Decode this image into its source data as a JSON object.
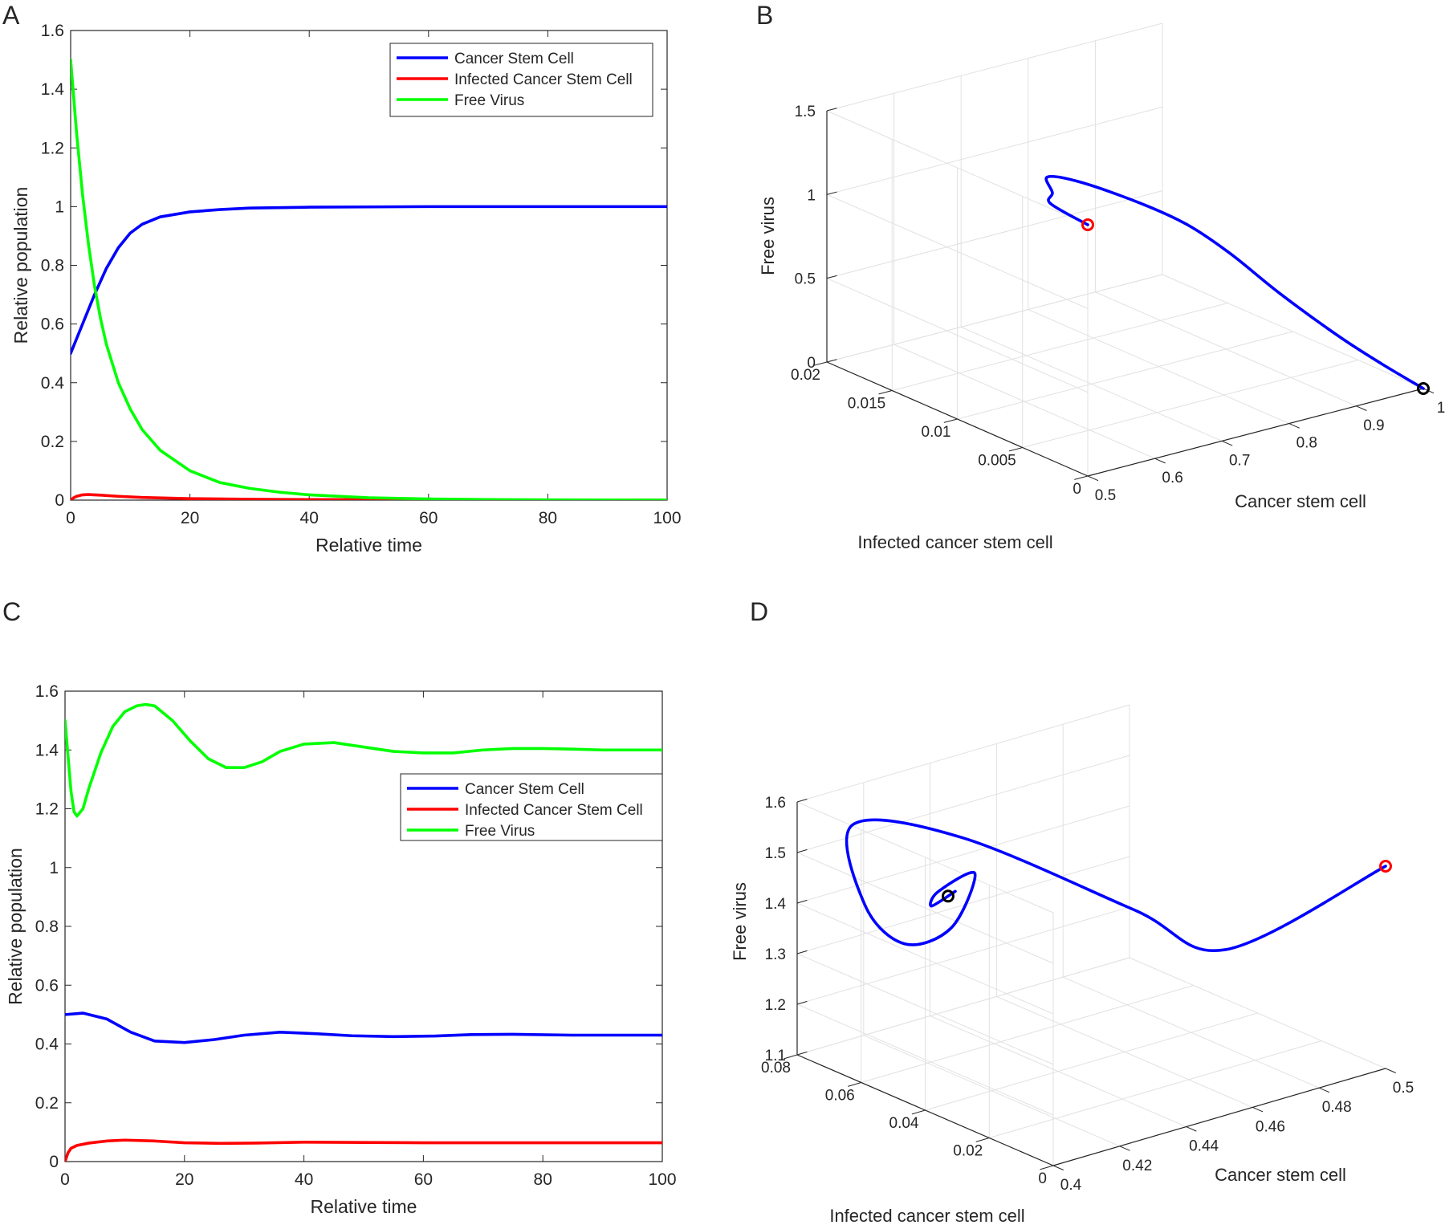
{
  "figure": {
    "panel_letters": [
      "A",
      "B",
      "C",
      "D"
    ]
  },
  "chart_data": [
    {
      "panel": "A",
      "type": "line",
      "xlabel": "Relative time",
      "ylabel": "Relative population",
      "xlim": [
        0,
        100
      ],
      "ylim": [
        0,
        1.6
      ],
      "xticks": [
        "0",
        "20",
        "40",
        "60",
        "80",
        "100"
      ],
      "yticks": [
        "0",
        "0.2",
        "0.4",
        "0.6",
        "0.8",
        "1",
        "1.2",
        "1.4",
        "1.6"
      ],
      "legend_position": "top-right",
      "series": [
        {
          "name": "Cancer Stem Cell",
          "color": "#0000ff",
          "x": [
            0,
            2,
            4,
            6,
            8,
            10,
            12,
            15,
            20,
            25,
            30,
            40,
            50,
            60,
            70,
            80,
            90,
            100
          ],
          "y": [
            0.5,
            0.6,
            0.7,
            0.79,
            0.86,
            0.91,
            0.94,
            0.965,
            0.982,
            0.99,
            0.995,
            0.998,
            0.999,
            1.0,
            1.0,
            1.0,
            1.0,
            1.0
          ]
        },
        {
          "name": "Infected Cancer Stem Cell",
          "color": "#ff0000",
          "x": [
            0,
            0.5,
            1,
            2,
            3,
            5,
            8,
            12,
            20,
            30,
            40,
            60,
            80,
            100
          ],
          "y": [
            0,
            0.008,
            0.013,
            0.018,
            0.019,
            0.017,
            0.013,
            0.009,
            0.005,
            0.003,
            0.002,
            0.001,
            0.0005,
            0.0003
          ]
        },
        {
          "name": "Free Virus",
          "color": "#00ff00",
          "x": [
            0,
            1,
            2,
            3,
            4,
            5,
            6,
            8,
            10,
            12,
            15,
            20,
            25,
            30,
            35,
            40,
            50,
            60,
            70,
            80,
            90,
            100
          ],
          "y": [
            1.5,
            1.25,
            1.04,
            0.87,
            0.73,
            0.62,
            0.53,
            0.4,
            0.31,
            0.24,
            0.17,
            0.1,
            0.06,
            0.04,
            0.027,
            0.018,
            0.008,
            0.004,
            0.002,
            0.001,
            0.0005,
            0.0003
          ]
        }
      ]
    },
    {
      "panel": "B",
      "type": "line3d",
      "xlabel": "Cancer stem cell",
      "ylabel": "Infected cancer stem cell",
      "zlabel": "Free virus",
      "xticks": [
        "0.5",
        "0.6",
        "0.7",
        "0.8",
        "0.9",
        "1"
      ],
      "yticks": [
        "0",
        "0.005",
        "0.01",
        "0.015",
        "0.02"
      ],
      "zticks": [
        "0",
        "0.5",
        "1",
        "1.5"
      ],
      "series": [
        {
          "name": "trajectory",
          "color": "#0000ff",
          "points": [
            [
              0.5,
              0,
              1.5
            ],
            [
              0.6,
              0.008,
              1.25
            ],
            [
              0.7,
              0.013,
              1.04
            ],
            [
              0.79,
              0.018,
              0.87
            ],
            [
              0.86,
              0.019,
              0.73
            ],
            [
              0.91,
              0.017,
              0.62
            ],
            [
              0.94,
              0.015,
              0.53
            ],
            [
              0.965,
              0.013,
              0.4
            ],
            [
              0.98,
              0.01,
              0.25
            ],
            [
              0.99,
              0.006,
              0.12
            ],
            [
              0.996,
              0.003,
              0.05
            ],
            [
              1.0,
              0,
              0
            ]
          ]
        }
      ],
      "markers": [
        {
          "label": "start",
          "color": "#ff0000",
          "point": [
            0.5,
            0,
            1.5
          ]
        },
        {
          "label": "end",
          "color": "#000000",
          "point": [
            1.0,
            0,
            0
          ]
        }
      ]
    },
    {
      "panel": "C",
      "type": "line",
      "xlabel": "Relative time",
      "ylabel": "Relative population",
      "xlim": [
        0,
        100
      ],
      "ylim": [
        0,
        1.6
      ],
      "xticks": [
        "0",
        "20",
        "40",
        "60",
        "80",
        "100"
      ],
      "yticks": [
        "0",
        "0.2",
        "0.4",
        "0.6",
        "0.8",
        "1",
        "1.2",
        "1.4",
        "1.6"
      ],
      "legend_position": "right",
      "series": [
        {
          "name": "Cancer Stem Cell",
          "color": "#0000ff",
          "x": [
            0,
            3,
            7,
            11,
            15,
            20,
            25,
            30,
            36,
            42,
            48,
            55,
            62,
            68,
            75,
            85,
            100
          ],
          "y": [
            0.5,
            0.505,
            0.485,
            0.44,
            0.41,
            0.405,
            0.415,
            0.43,
            0.44,
            0.435,
            0.428,
            0.425,
            0.427,
            0.432,
            0.433,
            0.43,
            0.43
          ]
        },
        {
          "name": "Infected Cancer Stem Cell",
          "color": "#ff0000",
          "x": [
            0,
            0.5,
            1,
            2,
            4,
            7,
            10,
            15,
            20,
            26,
            32,
            40,
            50,
            60,
            70,
            80,
            90,
            100
          ],
          "y": [
            0,
            0.03,
            0.045,
            0.055,
            0.063,
            0.07,
            0.073,
            0.07,
            0.064,
            0.062,
            0.063,
            0.066,
            0.065,
            0.064,
            0.064,
            0.064,
            0.064,
            0.064
          ]
        },
        {
          "name": "Free Virus",
          "color": "#00ff00",
          "x": [
            0,
            0.5,
            1,
            1.5,
            2,
            3,
            4,
            6,
            8,
            10,
            12,
            13.5,
            15,
            18,
            21,
            24,
            27,
            30,
            33,
            36,
            40,
            45,
            50,
            55,
            60,
            65,
            70,
            75,
            80,
            85,
            90,
            95,
            100
          ],
          "y": [
            1.5,
            1.38,
            1.26,
            1.19,
            1.175,
            1.2,
            1.27,
            1.39,
            1.48,
            1.53,
            1.55,
            1.555,
            1.55,
            1.5,
            1.43,
            1.37,
            1.34,
            1.34,
            1.36,
            1.395,
            1.42,
            1.425,
            1.41,
            1.395,
            1.39,
            1.39,
            1.4,
            1.405,
            1.405,
            1.403,
            1.4,
            1.4,
            1.4
          ]
        }
      ]
    },
    {
      "panel": "D",
      "type": "line3d",
      "xlabel": "Cancer stem cell",
      "ylabel": "Infected cancer stem cell",
      "zlabel": "Free virus",
      "xticks": [
        "0.4",
        "0.42",
        "0.44",
        "0.46",
        "0.48",
        "0.5"
      ],
      "yticks": [
        "0",
        "0.02",
        "0.04",
        "0.06",
        "0.08"
      ],
      "zticks": [
        "1.1",
        "1.2",
        "1.3",
        "1.4",
        "1.5",
        "1.6"
      ],
      "series": [
        {
          "name": "trajectory",
          "color": "#0000ff",
          "points": [
            [
              0.5,
              0,
              1.5
            ],
            [
              0.505,
              0.055,
              1.175
            ],
            [
              0.485,
              0.063,
              1.27
            ],
            [
              0.44,
              0.07,
              1.48
            ],
            [
              0.41,
              0.073,
              1.555
            ],
            [
              0.405,
              0.064,
              1.43
            ],
            [
              0.415,
              0.062,
              1.34
            ],
            [
              0.43,
              0.063,
              1.34
            ],
            [
              0.44,
              0.066,
              1.42
            ],
            [
              0.428,
              0.065,
              1.41
            ],
            [
              0.425,
              0.064,
              1.39
            ],
            [
              0.432,
              0.064,
              1.405
            ],
            [
              0.43,
              0.064,
              1.4
            ]
          ]
        }
      ],
      "markers": [
        {
          "label": "start",
          "color": "#ff0000",
          "point": [
            0.5,
            0,
            1.5
          ]
        },
        {
          "label": "end",
          "color": "#000000",
          "point": [
            0.43,
            0.064,
            1.4
          ]
        }
      ]
    }
  ]
}
